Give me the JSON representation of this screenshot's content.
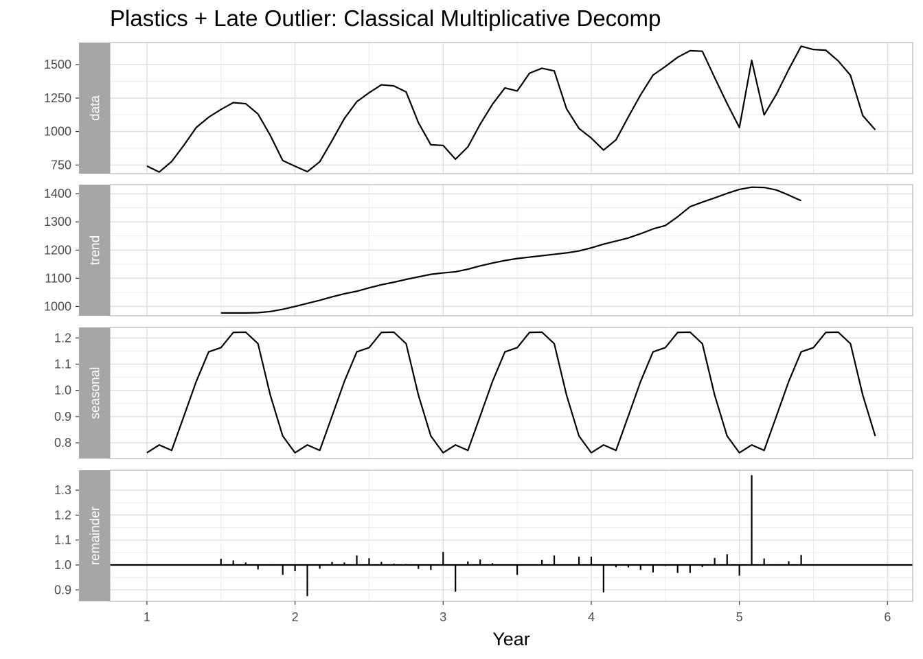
{
  "chart_data": {
    "type": "line",
    "title": "Plastics + Late Outlier: Classical Multiplicative Decomp",
    "xlabel": "Year",
    "x_ticks": [
      1,
      2,
      3,
      4,
      5,
      6
    ],
    "xlim": [
      0.75,
      6.17
    ],
    "grid": true,
    "panels": [
      {
        "name": "data",
        "geom": "line",
        "ylim": [
          685,
          1665
        ],
        "y_ticks": [
          750,
          1000,
          1250,
          1500
        ],
        "x": [
          1.0,
          1.083,
          1.167,
          1.25,
          1.333,
          1.417,
          1.5,
          1.583,
          1.667,
          1.75,
          1.833,
          1.917,
          2.0,
          2.083,
          2.167,
          2.25,
          2.333,
          2.417,
          2.5,
          2.583,
          2.667,
          2.75,
          2.833,
          2.917,
          3.0,
          3.083,
          3.167,
          3.25,
          3.333,
          3.417,
          3.5,
          3.583,
          3.667,
          3.75,
          3.833,
          3.917,
          4.0,
          4.083,
          4.167,
          4.25,
          4.333,
          4.417,
          4.5,
          4.583,
          4.667,
          4.75,
          4.833,
          4.917,
          5.0,
          5.083,
          5.167,
          5.25,
          5.333,
          5.417,
          5.5,
          5.583,
          5.667,
          5.75,
          5.833,
          5.917
        ],
        "values": [
          742,
          697,
          776,
          898,
          1030,
          1107,
          1165,
          1216,
          1208,
          1131,
          971,
          783,
          741,
          700,
          774,
          932,
          1097,
          1223,
          1290,
          1349,
          1341,
          1296,
          1066,
          901,
          896,
          793,
          885,
          1055,
          1204,
          1326,
          1303,
          1436,
          1473,
          1453,
          1170,
          1023,
          951,
          861,
          938,
          1109,
          1274,
          1422,
          1486,
          1555,
          1604,
          1600,
          1403,
          1209,
          1030,
          1532,
          1124,
          1279,
          1464,
          1638,
          1613,
          1608,
          1528,
          1420,
          1119,
          1013
        ]
      },
      {
        "name": "trend",
        "geom": "line",
        "ylim": [
          967,
          1432
        ],
        "y_ticks": [
          1000,
          1100,
          1200,
          1300,
          1400
        ],
        "x": [
          1.5,
          1.583,
          1.667,
          1.75,
          1.833,
          1.917,
          2.0,
          2.083,
          2.167,
          2.25,
          2.333,
          2.417,
          2.5,
          2.583,
          2.667,
          2.75,
          2.833,
          2.917,
          3.0,
          3.083,
          3.167,
          3.25,
          3.333,
          3.417,
          3.5,
          3.583,
          3.667,
          3.75,
          3.833,
          3.917,
          4.0,
          4.083,
          4.167,
          4.25,
          4.333,
          4.417,
          4.5,
          4.583,
          4.667,
          4.75,
          4.833,
          4.917,
          5.0,
          5.083,
          5.167,
          5.25,
          5.333,
          5.417
        ],
        "values": [
          977,
          977,
          977,
          978,
          982,
          990,
          1000,
          1011,
          1022,
          1034,
          1045,
          1054,
          1066,
          1077,
          1086,
          1096,
          1105,
          1114,
          1119,
          1123,
          1132,
          1144,
          1154,
          1163,
          1170,
          1175,
          1180,
          1185,
          1190,
          1197,
          1208,
          1221,
          1232,
          1243,
          1258,
          1275,
          1287,
          1318,
          1354,
          1370,
          1385,
          1401,
          1415,
          1423,
          1422,
          1413,
          1395,
          1375
        ]
      },
      {
        "name": "seasonal",
        "geom": "line",
        "ylim": [
          0.74,
          1.24
        ],
        "y_ticks": [
          0.8,
          0.9,
          1.0,
          1.1,
          1.2
        ],
        "x": [
          1.0,
          1.083,
          1.167,
          1.25,
          1.333,
          1.417,
          1.5,
          1.583,
          1.667,
          1.75,
          1.833,
          1.917,
          2.0,
          2.083,
          2.167,
          2.25,
          2.333,
          2.417,
          2.5,
          2.583,
          2.667,
          2.75,
          2.833,
          2.917,
          3.0,
          3.083,
          3.167,
          3.25,
          3.333,
          3.417,
          3.5,
          3.583,
          3.667,
          3.75,
          3.833,
          3.917,
          4.0,
          4.083,
          4.167,
          4.25,
          4.333,
          4.417,
          4.5,
          4.583,
          4.667,
          4.75,
          4.833,
          4.917,
          5.0,
          5.083,
          5.167,
          5.25,
          5.333,
          5.417,
          5.5,
          5.583,
          5.667,
          5.75,
          5.833,
          5.917
        ],
        "values": [
          0.762,
          0.792,
          0.771,
          0.902,
          1.034,
          1.147,
          1.163,
          1.221,
          1.222,
          1.178,
          0.982,
          0.826,
          0.762,
          0.792,
          0.771,
          0.902,
          1.034,
          1.147,
          1.163,
          1.221,
          1.222,
          1.178,
          0.982,
          0.826,
          0.762,
          0.792,
          0.771,
          0.902,
          1.034,
          1.147,
          1.163,
          1.221,
          1.222,
          1.178,
          0.982,
          0.826,
          0.762,
          0.792,
          0.771,
          0.902,
          1.034,
          1.147,
          1.163,
          1.221,
          1.222,
          1.178,
          0.982,
          0.826,
          0.762,
          0.792,
          0.771,
          0.902,
          1.034,
          1.147,
          1.163,
          1.221,
          1.222,
          1.178,
          0.982,
          0.826
        ]
      },
      {
        "name": "remainder",
        "geom": "segment",
        "baseline": 1.0,
        "ylim": [
          0.854,
          1.38
        ],
        "y_ticks": [
          0.9,
          1.0,
          1.1,
          1.2,
          1.3
        ],
        "x": [
          1.5,
          1.583,
          1.667,
          1.75,
          1.833,
          1.917,
          2.0,
          2.083,
          2.167,
          2.25,
          2.333,
          2.417,
          2.5,
          2.583,
          2.667,
          2.75,
          2.833,
          2.917,
          3.0,
          3.083,
          3.167,
          3.25,
          3.333,
          3.417,
          3.5,
          3.583,
          3.667,
          3.75,
          3.833,
          3.917,
          4.0,
          4.083,
          4.167,
          4.25,
          4.333,
          4.417,
          4.5,
          4.583,
          4.667,
          4.75,
          4.833,
          4.917,
          5.0,
          5.083,
          5.167,
          5.25,
          5.333,
          5.417
        ],
        "values": [
          1.025,
          1.018,
          1.01,
          0.982,
          1.003,
          0.96,
          0.975,
          0.875,
          0.985,
          1.012,
          1.01,
          1.038,
          1.027,
          1.012,
          1.005,
          1.004,
          0.984,
          0.98,
          1.052,
          0.893,
          1.014,
          1.022,
          1.007,
          0.998,
          0.96,
          1.002,
          1.02,
          1.038,
          1.002,
          1.033,
          1.033,
          0.89,
          0.991,
          0.99,
          0.98,
          0.97,
          0.996,
          0.968,
          0.968,
          0.992,
          1.028,
          1.043,
          0.957,
          1.36,
          1.026,
          1.003,
          1.015,
          1.04
        ]
      }
    ]
  }
}
